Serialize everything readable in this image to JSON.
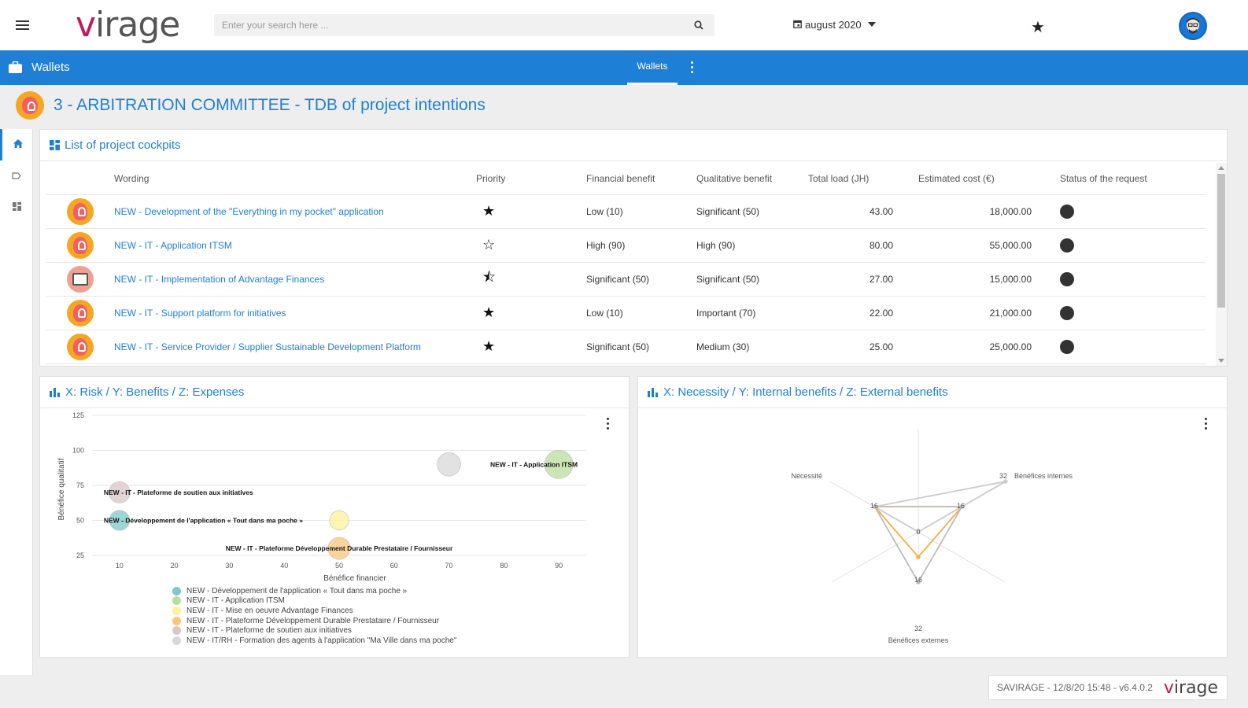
{
  "app": {
    "logo_v": "v",
    "logo_rest": "irage",
    "search_placeholder": "Enter your search here ...",
    "period": "august 2020"
  },
  "header": {
    "section_title": "Wallets",
    "tab_label": "Wallets"
  },
  "page": {
    "title": "3 - ARBITRATION COMMITTEE - TDB of project intentions"
  },
  "cockpits": {
    "title": "List of project cockpits",
    "columns": [
      "",
      "Wording",
      "Priority",
      "Financial benefit",
      "Qualitative benefit",
      "Total load (JH)",
      "Estimated cost (€)",
      "Status of the request"
    ],
    "rows": [
      {
        "icon": "lightbulb-icon",
        "wording": "NEW - Development of the \"Everything in my pocket\" application",
        "priority": "full",
        "financial": "Low (10)",
        "qualitative": "Significant (50)",
        "load": "43.00",
        "cost": "18,000.00"
      },
      {
        "icon": "lightbulb-icon",
        "wording": "NEW - IT - Application ITSM",
        "priority": "empty",
        "financial": "High (90)",
        "qualitative": "High (90)",
        "load": "80.00",
        "cost": "55,000.00"
      },
      {
        "icon": "laptop-icon",
        "wording": "NEW - IT - Implementation of Advantage Finances",
        "priority": "half",
        "financial": "Significant (50)",
        "qualitative": "Significant (50)",
        "load": "27.00",
        "cost": "15,000.00"
      },
      {
        "icon": "lightbulb-icon",
        "wording": "NEW - IT - Support platform for initiatives",
        "priority": "full",
        "financial": "Low (10)",
        "qualitative": "Important (70)",
        "load": "22.00",
        "cost": "21,000.00"
      },
      {
        "icon": "lightbulb-icon",
        "wording": "NEW - IT - Service Provider / Supplier Sustainable Development Platform",
        "priority": "full",
        "financial": "Significant (50)",
        "qualitative": "Medium (30)",
        "load": "25.00",
        "cost": "25,000.00"
      }
    ]
  },
  "chart_data": [
    {
      "type": "scatter",
      "title": "X: Risk / Y: Benefits / Z: Expenses",
      "xlabel": "Bénéfice financier",
      "ylabel": "Bénéfice qualitatif",
      "xlim": [
        5,
        95
      ],
      "ylim": [
        25,
        125
      ],
      "xticks": [
        10,
        20,
        30,
        40,
        50,
        60,
        70,
        80,
        90
      ],
      "yticks": [
        25,
        50,
        75,
        100,
        125
      ],
      "grid": true,
      "legend_position": "bottom",
      "series": [
        {
          "name": "NEW - Développement de l'application « Tout dans ma poche »",
          "color": "#7ec8c8",
          "points": [
            {
              "x": 10,
              "y": 50,
              "z": 18000,
              "label": "NEW - Développement de l'application « Tout dans ma poche »"
            }
          ]
        },
        {
          "name": "NEW - IT - Application ITSM",
          "color": "#b9dd9b",
          "points": [
            {
              "x": 90,
              "y": 90,
              "z": 55000,
              "label": "NEW - IT - Application ITSM"
            }
          ]
        },
        {
          "name": "NEW - IT - Mise en oeuvre Advantage Finances",
          "color": "#fff19a",
          "points": [
            {
              "x": 50,
              "y": 50,
              "z": 15000,
              "label": ""
            }
          ]
        },
        {
          "name": "NEW - IT - Plateforme Développement Durable Prestataire / Fournisseur",
          "color": "#f8c77a",
          "points": [
            {
              "x": 50,
              "y": 30,
              "z": 25000,
              "label": "NEW - IT - Plateforme Développement Durable Prestataire / Fournisseur"
            }
          ]
        },
        {
          "name": "NEW - IT - Plateforme de soutien aux initiatives",
          "color": "#d9c7c7",
          "points": [
            {
              "x": 10,
              "y": 70,
              "z": 21000,
              "label": "NEW - IT - Plateforme de soutien aux initiatives"
            }
          ]
        },
        {
          "name": "NEW - IT/RH - Formation des agents à l'application \"Ma Ville dans ma poche\"",
          "color": "#d8d8d8",
          "points": [
            {
              "x": 70,
              "y": 90,
              "z": 30000,
              "label": ""
            }
          ]
        }
      ]
    },
    {
      "type": "radar",
      "title": "X: Necessity / Y: Internal benefits / Z: External benefits",
      "axes": [
        "Nécessité",
        "Bénéfices internes",
        "Bénéfices externes"
      ],
      "max": 32,
      "tick_labels": [
        "0",
        "16",
        "32"
      ],
      "series": [
        {
          "color": "#f5b041",
          "values": [
            16,
            16,
            8
          ]
        },
        {
          "color": "#bdbdbd",
          "values": [
            16,
            16,
            16
          ]
        },
        {
          "color": "#cccccc",
          "values": [
            16,
            32,
            0
          ]
        }
      ]
    }
  ],
  "footer": {
    "text": "SAVIRAGE - 12/8/20 15:48 - v6.4.0.2",
    "logo_v": "v",
    "logo_rest": "irage"
  },
  "colors": {
    "brand": "#1e7fd6",
    "logo_accent": "#c2185b"
  }
}
